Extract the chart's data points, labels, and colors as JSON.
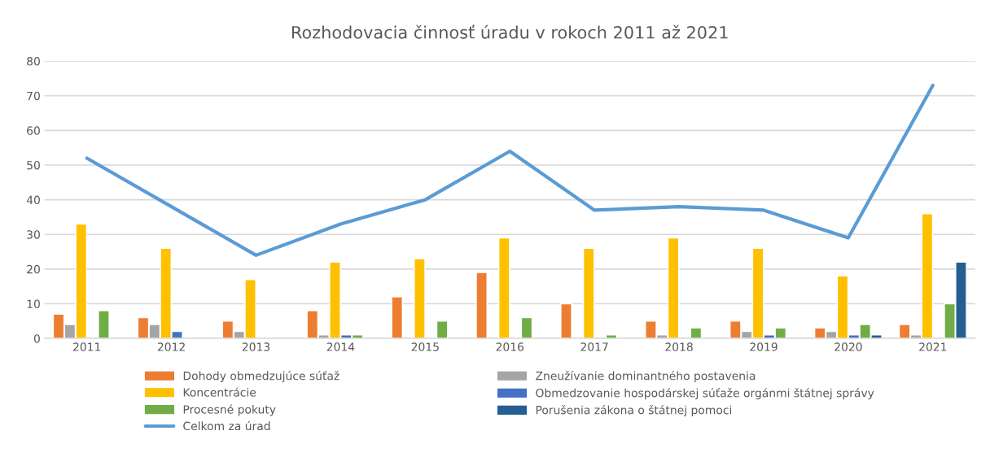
{
  "chart_data": {
    "type": "bar",
    "title": "Rozhodovacia činnosť úradu v rokoch 2011 až 2021",
    "categories": [
      "2011",
      "2012",
      "2013",
      "2014",
      "2015",
      "2016",
      "2017",
      "2018",
      "2019",
      "2020",
      "2021"
    ],
    "series": [
      {
        "name": "Dohody obmedzujúce súťaž",
        "color": "#ed7d31",
        "values": [
          7,
          6,
          5,
          8,
          12,
          19,
          10,
          5,
          5,
          3,
          4
        ]
      },
      {
        "name": "Zneužívanie dominantného postavenia",
        "color": "#a5a5a5",
        "values": [
          4,
          4,
          2,
          1,
          null,
          null,
          null,
          1,
          2,
          2,
          1
        ]
      },
      {
        "name": "Koncentrácie",
        "color": "#ffc000",
        "values": [
          33,
          26,
          17,
          22,
          23,
          29,
          26,
          29,
          26,
          18,
          36
        ]
      },
      {
        "name": "Obmedzovanie hospodárskej súťaže orgánmi štátnej správy",
        "color": "#4472c4",
        "values": [
          null,
          2,
          null,
          1,
          null,
          null,
          null,
          null,
          1,
          1,
          null
        ]
      },
      {
        "name": "Procesné pokuty",
        "color": "#70ad47",
        "values": [
          8,
          null,
          null,
          1,
          5,
          6,
          1,
          3,
          3,
          4,
          10
        ]
      },
      {
        "name": "Porušenia zákona o štátnej pomoci",
        "color": "#255e91",
        "values": [
          null,
          null,
          null,
          null,
          null,
          null,
          null,
          null,
          null,
          1,
          22
        ]
      },
      {
        "name": "Celkom za úrad",
        "type": "line",
        "color": "#5b9bd5",
        "values": [
          52,
          38,
          24,
          33,
          40,
          54,
          37,
          38,
          37,
          29,
          73
        ]
      }
    ],
    "ylim": [
      0,
      80
    ],
    "yticks": [
      0,
      10,
      20,
      30,
      40,
      50,
      60,
      70,
      80
    ],
    "grid": "y",
    "legend": "bottom"
  }
}
